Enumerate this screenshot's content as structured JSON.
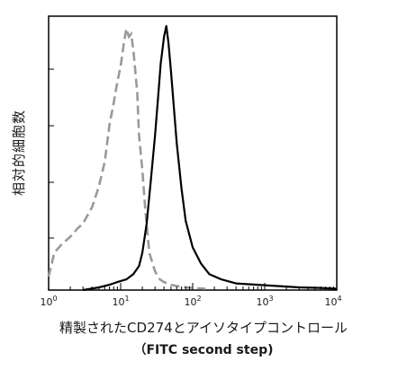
{
  "chart_data": {
    "type": "area",
    "x_scale": "log",
    "xlim": [
      1,
      10000
    ],
    "ylim": [
      0,
      1.0
    ],
    "grid": false,
    "legend": "none",
    "x_ticks": [
      {
        "base": "10",
        "exp": "0",
        "value": 1
      },
      {
        "base": "10",
        "exp": "1",
        "value": 10
      },
      {
        "base": "10",
        "exp": "2",
        "value": 100
      },
      {
        "base": "10",
        "exp": "3",
        "value": 1000
      },
      {
        "base": "10",
        "exp": "4",
        "value": 10000
      }
    ],
    "ylabel": "相対的細胞数",
    "xlabel": "精製されたCD274とアイソタイプコントロール",
    "xlabel_sub": "（FITC second step)",
    "series": [
      {
        "style": "dashed",
        "color": "#9a9a9a",
        "x": [
          1.0,
          1.2,
          1.5,
          2.0,
          2.5,
          3.0,
          4.0,
          5.0,
          6.0,
          7.0,
          8.0,
          9.0,
          10.0,
          11.0,
          12.0,
          13.0,
          14.0,
          15.0,
          16.0,
          17.0,
          18.0,
          20.0,
          22.0,
          25.0,
          30.0,
          35.0,
          40.0,
          50.0,
          60.0,
          80.0,
          100.0,
          150.0
        ],
        "y": [
          0.05,
          0.14,
          0.17,
          0.2,
          0.23,
          0.25,
          0.31,
          0.39,
          0.48,
          0.62,
          0.7,
          0.78,
          0.84,
          0.92,
          0.98,
          0.95,
          0.96,
          0.9,
          0.82,
          0.74,
          0.58,
          0.45,
          0.3,
          0.14,
          0.07,
          0.04,
          0.03,
          0.02,
          0.015,
          0.01,
          0.008,
          0.005
        ]
      },
      {
        "style": "solid",
        "color": "#000000",
        "x": [
          3.0,
          5.0,
          7.0,
          9.0,
          12.0,
          15.0,
          18.0,
          20.0,
          23.0,
          26.0,
          30.0,
          33.0,
          36.0,
          40.0,
          43.0,
          46.0,
          50.0,
          55.0,
          60.0,
          70.0,
          80.0,
          100.0,
          130.0,
          170.0,
          250.0,
          400.0,
          800.0,
          1500.0,
          3000.0,
          6000.0,
          10000.0
        ],
        "y": [
          0.0,
          0.01,
          0.02,
          0.03,
          0.04,
          0.06,
          0.09,
          0.14,
          0.25,
          0.4,
          0.58,
          0.72,
          0.85,
          0.95,
          0.99,
          0.93,
          0.82,
          0.68,
          0.55,
          0.38,
          0.26,
          0.16,
          0.1,
          0.06,
          0.04,
          0.025,
          0.02,
          0.015,
          0.01,
          0.008,
          0.005
        ]
      }
    ]
  }
}
